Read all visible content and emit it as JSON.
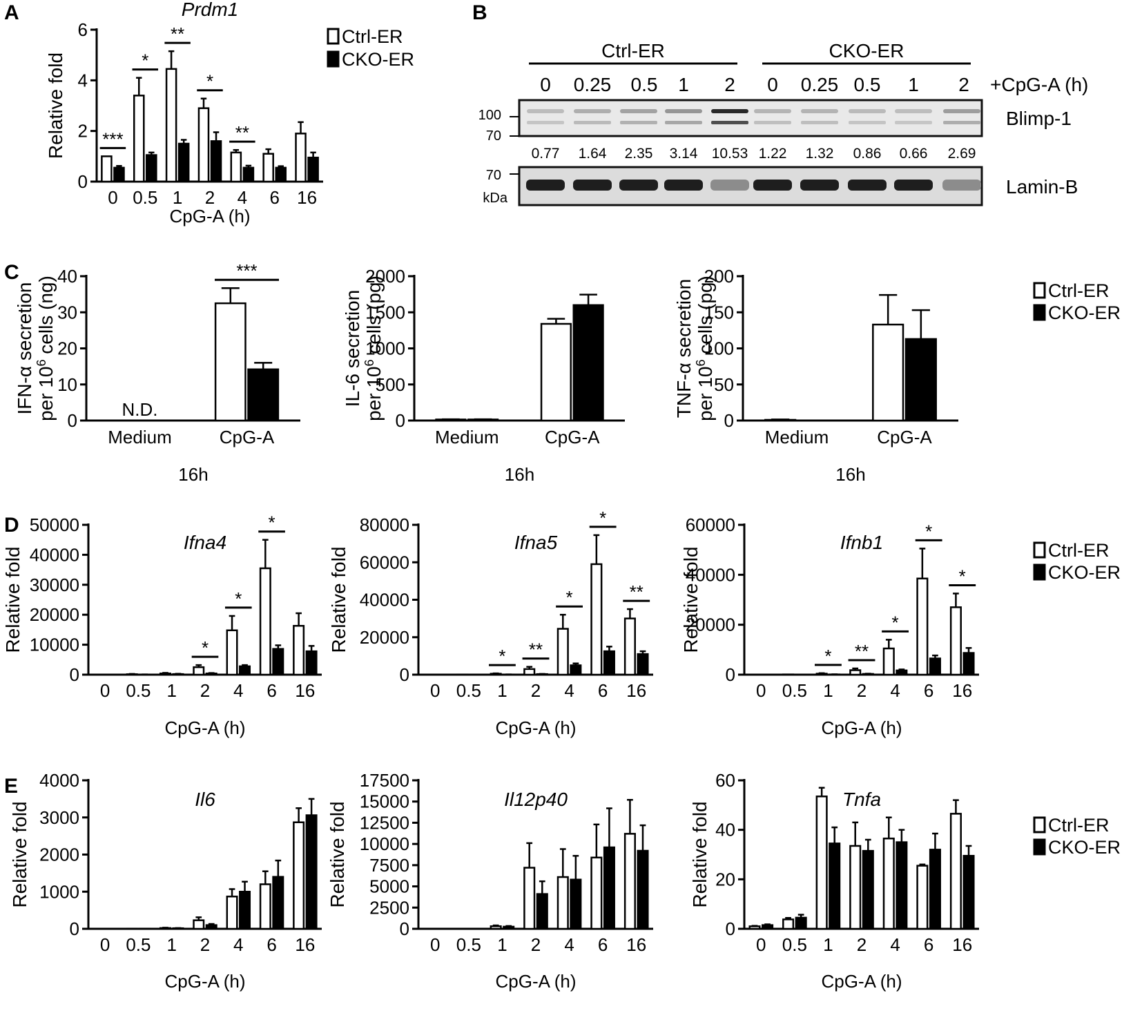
{
  "panel_letters": {
    "a": "A",
    "b": "B",
    "c": "C",
    "d": "D",
    "e": "E"
  },
  "legend": {
    "ctrl": "Ctrl-ER",
    "cko": "CKO-ER"
  },
  "blot": {
    "group_ctrl": "Ctrl-ER",
    "group_cko": "CKO-ER",
    "time_label": "+CpG-A (h)",
    "lanes": [
      "0",
      "0.25",
      "0.5",
      "1",
      "2",
      "0",
      "0.25",
      "0.5",
      "1",
      "2"
    ],
    "quant": [
      "0.77",
      "1.64",
      "2.35",
      "3.14",
      "10.53",
      "1.22",
      "1.32",
      "0.86",
      "0.66",
      "2.69"
    ],
    "band_blimp": "Blimp-1",
    "band_lamin": "Lamin-B",
    "mw_100": "100",
    "mw_70a": "70",
    "mw_70b": "70",
    "mw_unit": "kDa"
  },
  "chart_data": [
    {
      "id": "A",
      "type": "bar",
      "title": "Prdm1",
      "ylabel": "Relative fold",
      "xlabel": "CpG-A (h)",
      "categories": [
        "0",
        "0.5",
        "1",
        "2",
        "4",
        "6",
        "16"
      ],
      "ylim": [
        0,
        6
      ],
      "yticks": [
        0,
        2,
        4,
        6
      ],
      "series": [
        {
          "name": "Ctrl-ER",
          "values": [
            1.0,
            3.4,
            4.45,
            2.9,
            1.15,
            1.1,
            1.9
          ],
          "errors": [
            0.0,
            0.7,
            0.7,
            0.38,
            0.1,
            0.18,
            0.45
          ]
        },
        {
          "name": "CKO-ER",
          "values": [
            0.55,
            1.05,
            1.5,
            1.6,
            0.55,
            0.55,
            0.95
          ],
          "errors": [
            0.07,
            0.1,
            0.15,
            0.35,
            0.08,
            0.06,
            0.2
          ]
        }
      ],
      "significance": [
        {
          "category": "0",
          "label": "***"
        },
        {
          "category": "0.5",
          "label": "*"
        },
        {
          "category": "1",
          "label": "**"
        },
        {
          "category": "2",
          "label": "*"
        },
        {
          "category": "4",
          "label": "**"
        }
      ]
    },
    {
      "id": "C1",
      "type": "bar",
      "title": "",
      "ylabel": "IFN-α secretion per 10⁶ cells (ng)",
      "xlabel": "16h",
      "categories": [
        "Medium",
        "CpG-A"
      ],
      "ylim": [
        0,
        40
      ],
      "yticks": [
        0,
        10,
        20,
        30,
        40
      ],
      "series": [
        {
          "name": "Ctrl-ER",
          "values": [
            0,
            32.5
          ],
          "errors": [
            0,
            4.2
          ]
        },
        {
          "name": "CKO-ER",
          "values": [
            0,
            14.2
          ],
          "errors": [
            0,
            1.8
          ]
        }
      ],
      "annotations": [
        {
          "category": "Medium",
          "label": "N.D."
        }
      ],
      "significance": [
        {
          "category": "CpG-A",
          "label": "***"
        }
      ]
    },
    {
      "id": "C2",
      "type": "bar",
      "title": "",
      "ylabel": "IL-6 secretion per 10⁶ cells (pg)",
      "xlabel": "16h",
      "categories": [
        "Medium",
        "CpG-A"
      ],
      "ylim": [
        0,
        2000
      ],
      "yticks": [
        0,
        500,
        1000,
        1500,
        2000
      ],
      "series": [
        {
          "name": "Ctrl-ER",
          "values": [
            15,
            1340
          ],
          "errors": [
            3,
            70
          ]
        },
        {
          "name": "CKO-ER",
          "values": [
            15,
            1600
          ],
          "errors": [
            3,
            145
          ]
        }
      ]
    },
    {
      "id": "C3",
      "type": "bar",
      "title": "",
      "ylabel": "TNF-α secretion per 10⁶ cells (pg)",
      "xlabel": "16h",
      "categories": [
        "Medium",
        "CpG-A"
      ],
      "ylim": [
        0,
        200
      ],
      "yticks": [
        0,
        50,
        100,
        150,
        200
      ],
      "series": [
        {
          "name": "Ctrl-ER",
          "values": [
            1,
            133
          ],
          "errors": [
            0.5,
            41
          ]
        },
        {
          "name": "CKO-ER",
          "values": [
            0,
            113
          ],
          "errors": [
            0,
            40
          ]
        }
      ]
    },
    {
      "id": "D1",
      "type": "bar",
      "title": "Ifna4",
      "ylabel": "Relative fold",
      "xlabel": "CpG-A (h)",
      "categories": [
        "0",
        "0.5",
        "1",
        "2",
        "4",
        "6",
        "16"
      ],
      "ylim": [
        0,
        50000
      ],
      "yticks": [
        0,
        10000,
        20000,
        30000,
        40000,
        50000
      ],
      "series": [
        {
          "name": "Ctrl-ER",
          "values": [
            50,
            150,
            400,
            2500,
            14800,
            35500,
            16300
          ],
          "errors": [
            0,
            100,
            200,
            700,
            4800,
            9500,
            4200
          ]
        },
        {
          "name": "CKO-ER",
          "values": [
            20,
            60,
            200,
            400,
            2800,
            8600,
            7800
          ],
          "errors": [
            0,
            30,
            100,
            150,
            400,
            1200,
            1800
          ]
        }
      ],
      "significance": [
        {
          "category": "2",
          "label": "*"
        },
        {
          "category": "4",
          "label": "*"
        },
        {
          "category": "6",
          "label": "*"
        }
      ]
    },
    {
      "id": "D2",
      "type": "bar",
      "title": "Ifna5",
      "ylabel": "Relative fold",
      "xlabel": "CpG-A (h)",
      "categories": [
        "0",
        "0.5",
        "1",
        "2",
        "4",
        "6",
        "16"
      ],
      "ylim": [
        0,
        80000
      ],
      "yticks": [
        0,
        20000,
        40000,
        60000,
        80000
      ],
      "series": [
        {
          "name": "Ctrl-ER",
          "values": [
            50,
            100,
            500,
            3000,
            24500,
            59000,
            30000
          ],
          "errors": [
            0,
            0,
            200,
            1200,
            7500,
            15500,
            5000
          ]
        },
        {
          "name": "CKO-ER",
          "values": [
            20,
            50,
            100,
            300,
            5000,
            12500,
            11000
          ],
          "errors": [
            0,
            0,
            50,
            100,
            1000,
            2500,
            1500
          ]
        }
      ],
      "significance": [
        {
          "category": "1",
          "label": "*"
        },
        {
          "category": "2",
          "label": "**"
        },
        {
          "category": "4",
          "label": "*"
        },
        {
          "category": "6",
          "label": "*"
        },
        {
          "category": "16",
          "label": "**"
        }
      ]
    },
    {
      "id": "D3",
      "type": "bar",
      "title": "Ifnb1",
      "ylabel": "Relative fold",
      "xlabel": "CpG-A (h)",
      "categories": [
        "0",
        "0.5",
        "1",
        "2",
        "4",
        "6",
        "16"
      ],
      "ylim": [
        0,
        60000
      ],
      "yticks": [
        0,
        20000,
        40000,
        60000
      ],
      "series": [
        {
          "name": "Ctrl-ER",
          "values": [
            50,
            100,
            400,
            1800,
            10500,
            38500,
            27000
          ],
          "errors": [
            0,
            0,
            200,
            700,
            3500,
            12000,
            5500
          ]
        },
        {
          "name": "CKO-ER",
          "values": [
            20,
            50,
            100,
            300,
            1700,
            6500,
            8700
          ],
          "errors": [
            0,
            0,
            50,
            100,
            400,
            1200,
            2000
          ]
        }
      ],
      "significance": [
        {
          "category": "1",
          "label": "*"
        },
        {
          "category": "2",
          "label": "**"
        },
        {
          "category": "4",
          "label": "*"
        },
        {
          "category": "6",
          "label": "*"
        },
        {
          "category": "16",
          "label": "*"
        }
      ]
    },
    {
      "id": "E1",
      "type": "bar",
      "title": "Il6",
      "ylabel": "Relative fold",
      "xlabel": "CpG-A (h)",
      "categories": [
        "0",
        "0.5",
        "1",
        "2",
        "4",
        "6",
        "16"
      ],
      "ylim": [
        0,
        4000
      ],
      "yticks": [
        0,
        1000,
        2000,
        3000,
        4000
      ],
      "series": [
        {
          "name": "Ctrl-ER",
          "values": [
            2,
            5,
            20,
            230,
            870,
            1200,
            2870
          ],
          "errors": [
            0,
            0,
            10,
            80,
            200,
            350,
            380
          ]
        },
        {
          "name": "CKO-ER",
          "values": [
            2,
            5,
            15,
            100,
            1000,
            1400,
            3060
          ],
          "errors": [
            0,
            0,
            5,
            30,
            270,
            440,
            440
          ]
        }
      ]
    },
    {
      "id": "E2",
      "type": "bar",
      "title": "Il12p40",
      "ylabel": "Relative fold",
      "xlabel": "CpG-A (h)",
      "categories": [
        "0",
        "0.5",
        "1",
        "2",
        "4",
        "6",
        "16"
      ],
      "ylim": [
        0,
        17500
      ],
      "yticks": [
        0,
        2500,
        5000,
        7500,
        10000,
        12500,
        15000,
        17500
      ],
      "series": [
        {
          "name": "Ctrl-ER",
          "values": [
            10,
            20,
            300,
            7200,
            6100,
            8400,
            11200
          ],
          "errors": [
            0,
            0,
            100,
            2900,
            3300,
            3900,
            4000
          ]
        },
        {
          "name": "CKO-ER",
          "values": [
            10,
            20,
            250,
            4100,
            5800,
            9600,
            9200
          ],
          "errors": [
            0,
            0,
            80,
            1500,
            2800,
            4600,
            3000
          ]
        }
      ]
    },
    {
      "id": "E3",
      "type": "bar",
      "title": "Tnfa",
      "ylabel": "Relative fold",
      "xlabel": "CpG-A (h)",
      "categories": [
        "0",
        "0.5",
        "1",
        "2",
        "4",
        "6",
        "16"
      ],
      "ylim": [
        0,
        60
      ],
      "yticks": [
        0,
        20,
        40,
        60
      ],
      "series": [
        {
          "name": "Ctrl-ER",
          "values": [
            1.0,
            3.8,
            53.5,
            33.5,
            36.5,
            25.5,
            46.5
          ],
          "errors": [
            0.2,
            0.6,
            3.5,
            9.5,
            8.5,
            0.5,
            5.5
          ]
        },
        {
          "name": "CKO-ER",
          "values": [
            1.5,
            4.5,
            34.5,
            31.5,
            35.0,
            32.0,
            29.5
          ],
          "errors": [
            0.3,
            1.2,
            6.5,
            4.5,
            5.0,
            6.5,
            4.0
          ]
        }
      ]
    }
  ]
}
